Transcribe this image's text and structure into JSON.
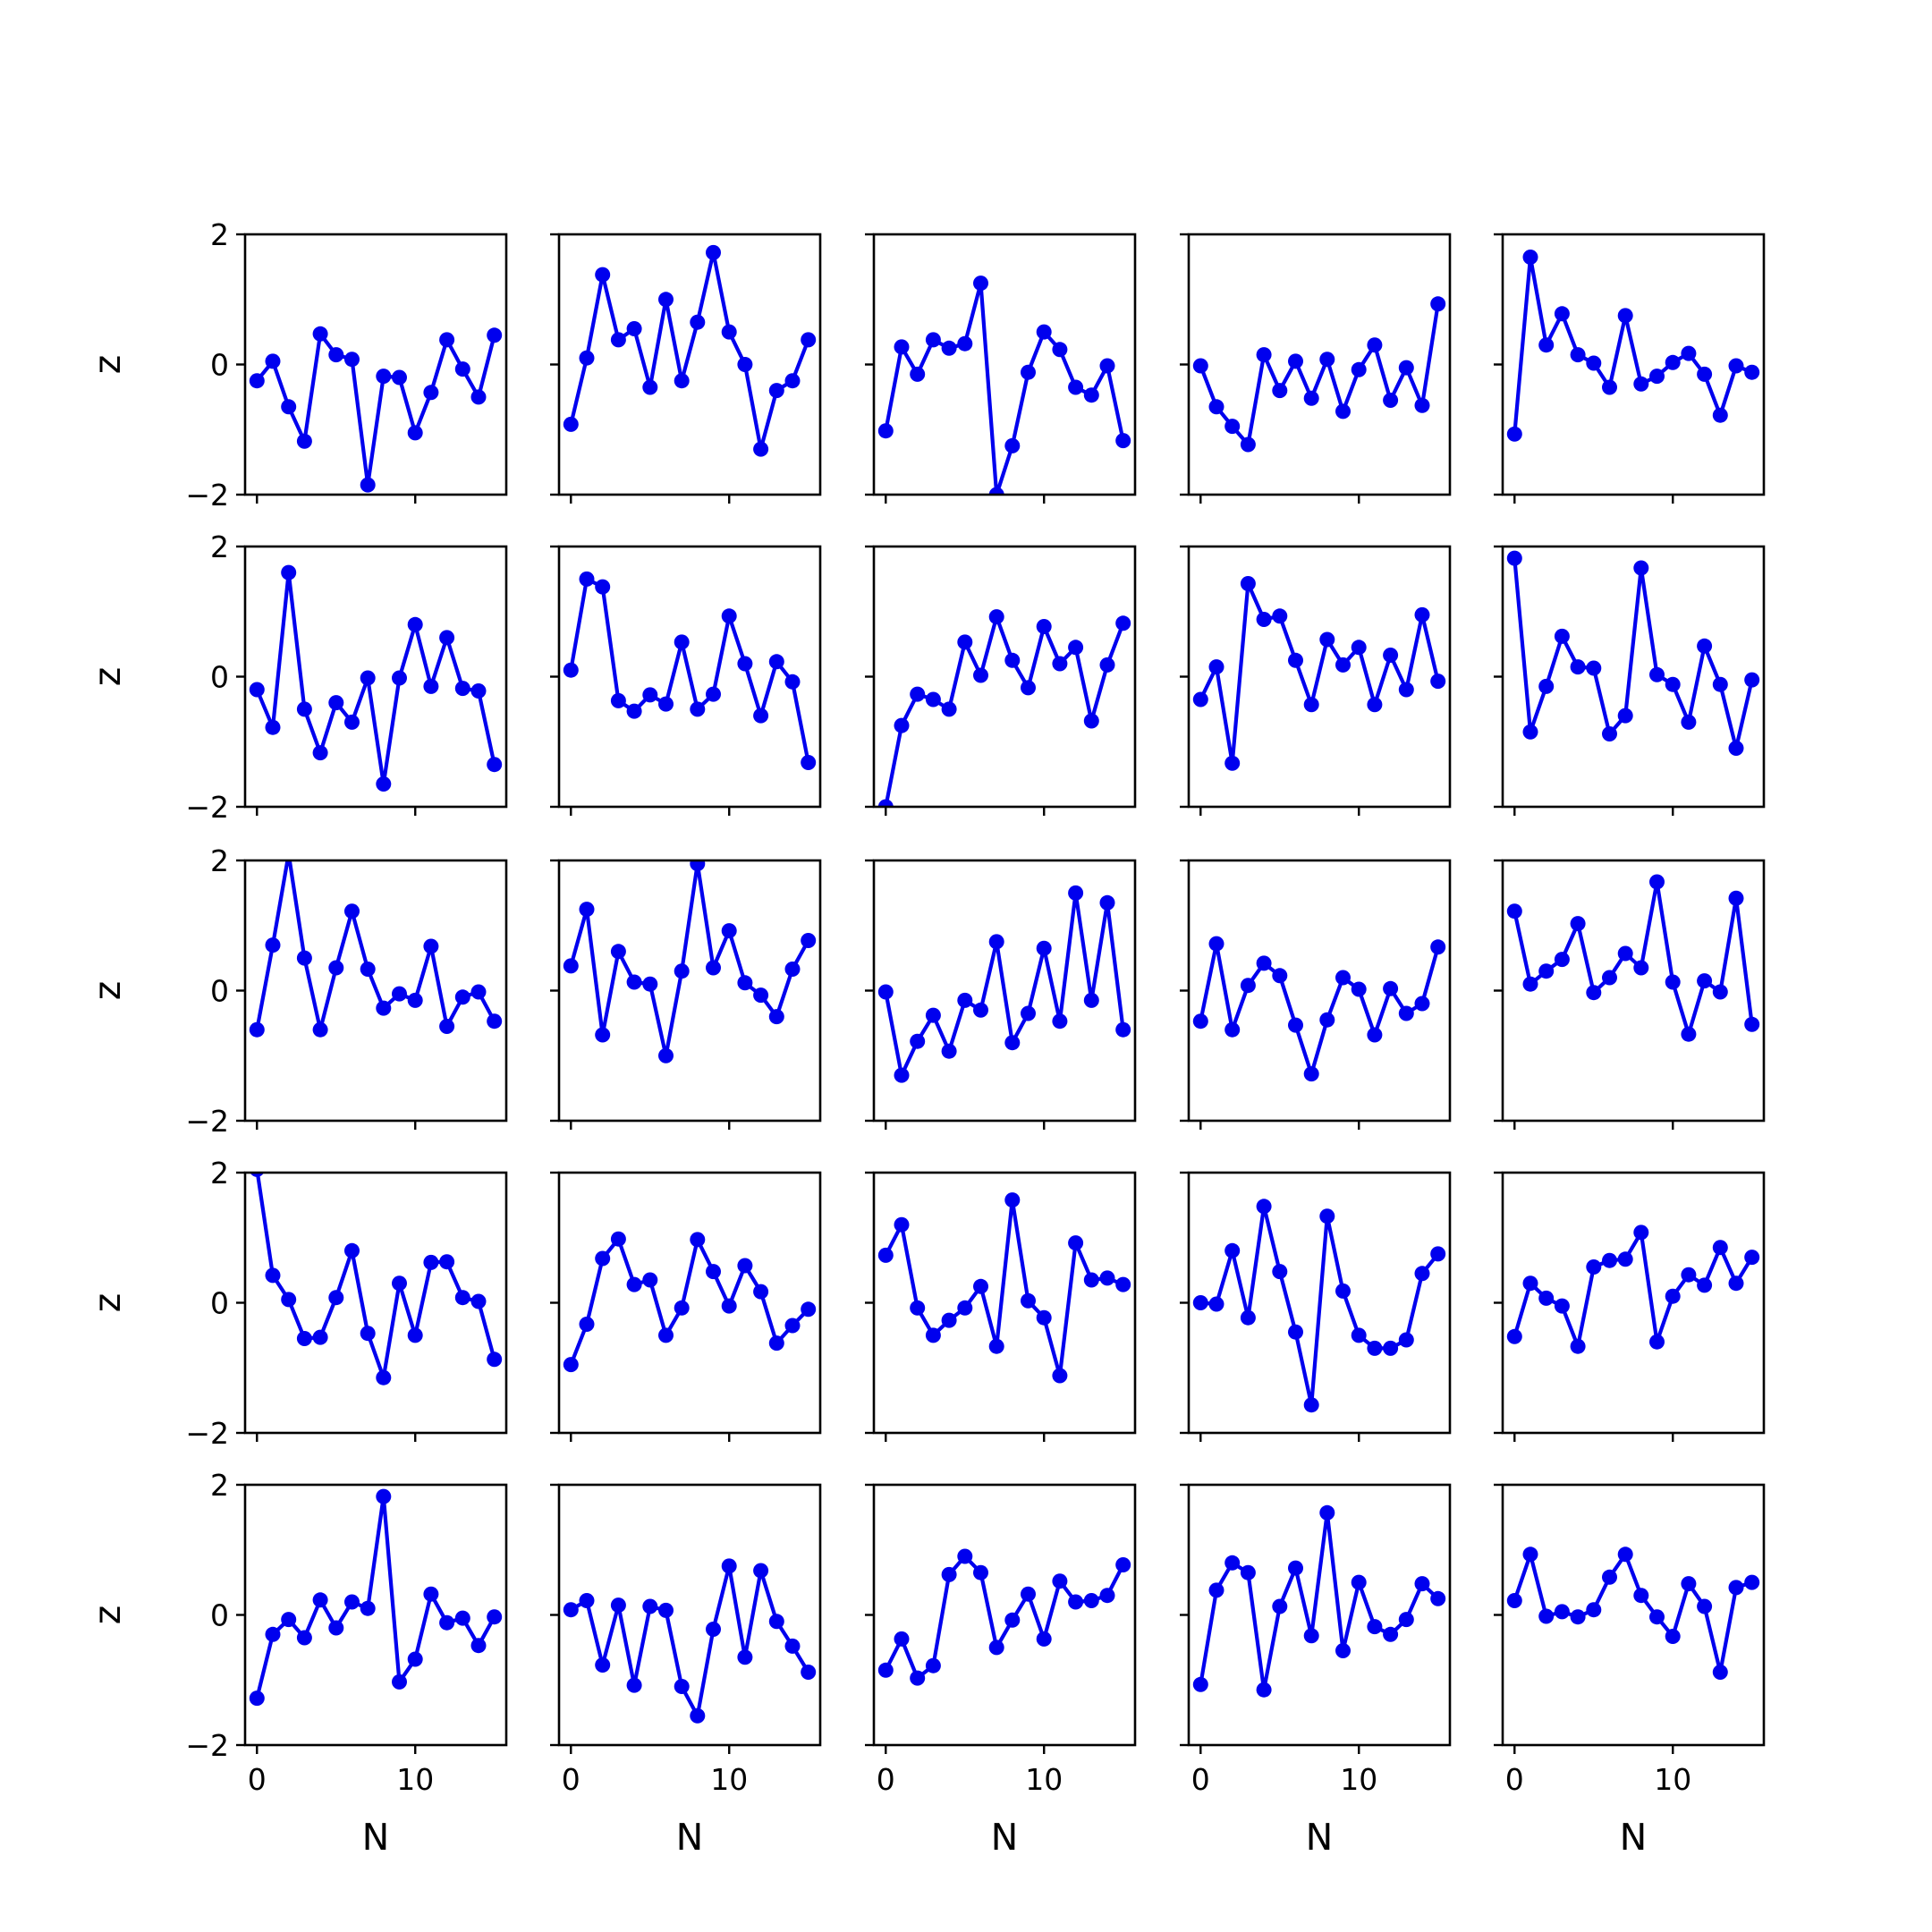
{
  "figure": {
    "rows": 5,
    "cols": 5,
    "line_color": "#0000ee",
    "marker_color": "#0000ee",
    "frame_color": "#000000",
    "background": "#ffffff"
  },
  "chart_data": [
    {
      "type": "line",
      "row": 0,
      "col": 0,
      "xlabel": "",
      "ylabel": "z",
      "xlim": [
        -0.75,
        15.75
      ],
      "ylim": [
        -2,
        2
      ],
      "xticks": [
        0,
        10
      ],
      "yticks": [
        -2,
        0,
        2
      ],
      "x": [
        0,
        1,
        2,
        3,
        4,
        5,
        6,
        7,
        8,
        9,
        10,
        11,
        12,
        13,
        14,
        15
      ],
      "y": [
        -0.25,
        0.05,
        -0.65,
        -1.18,
        0.47,
        0.15,
        0.08,
        -1.85,
        -0.18,
        -0.2,
        -1.05,
        -0.43,
        0.38,
        -0.07,
        -0.5,
        0.45
      ]
    },
    {
      "type": "line",
      "row": 0,
      "col": 1,
      "xlabel": "",
      "ylabel": "",
      "xlim": [
        -0.75,
        15.75
      ],
      "ylim": [
        -2,
        2
      ],
      "xticks": [
        0,
        10
      ],
      "yticks": [
        -2,
        0,
        2
      ],
      "x": [
        0,
        1,
        2,
        3,
        4,
        5,
        6,
        7,
        8,
        9,
        10,
        11,
        12,
        13,
        14,
        15
      ],
      "y": [
        -0.92,
        0.1,
        1.38,
        0.38,
        0.55,
        -0.35,
        1.0,
        -0.25,
        0.65,
        1.72,
        0.5,
        0.0,
        -1.3,
        -0.4,
        -0.25,
        0.38
      ]
    },
    {
      "type": "line",
      "row": 0,
      "col": 2,
      "xlabel": "",
      "ylabel": "",
      "xlim": [
        -0.75,
        15.75
      ],
      "ylim": [
        -2,
        2
      ],
      "xticks": [
        0,
        10
      ],
      "yticks": [
        -2,
        0,
        2
      ],
      "x": [
        0,
        1,
        2,
        3,
        4,
        5,
        6,
        7,
        8,
        9,
        10,
        11,
        12,
        13,
        14,
        15
      ],
      "y": [
        -1.02,
        0.27,
        -0.15,
        0.38,
        0.25,
        0.32,
        1.25,
        -2.0,
        -1.25,
        -0.12,
        0.5,
        0.23,
        -0.35,
        -0.47,
        -0.02,
        -1.17
      ]
    },
    {
      "type": "line",
      "row": 0,
      "col": 3,
      "xlabel": "",
      "ylabel": "",
      "xlim": [
        -0.75,
        15.75
      ],
      "ylim": [
        -2,
        2
      ],
      "xticks": [
        0,
        10
      ],
      "yticks": [
        -2,
        0,
        2
      ],
      "x": [
        0,
        1,
        2,
        3,
        4,
        5,
        6,
        7,
        8,
        9,
        10,
        11,
        12,
        13,
        14,
        15
      ],
      "y": [
        -0.02,
        -0.65,
        -0.95,
        -1.23,
        0.15,
        -0.4,
        0.05,
        -0.52,
        0.08,
        -0.72,
        -0.08,
        0.3,
        -0.55,
        -0.05,
        -0.63,
        0.93
      ]
    },
    {
      "type": "line",
      "row": 0,
      "col": 4,
      "xlabel": "",
      "ylabel": "",
      "xlim": [
        -0.75,
        15.75
      ],
      "ylim": [
        -2,
        2
      ],
      "xticks": [
        0,
        10
      ],
      "yticks": [
        -2,
        0,
        2
      ],
      "x": [
        0,
        1,
        2,
        3,
        4,
        5,
        6,
        7,
        8,
        9,
        10,
        11,
        12,
        13,
        14,
        15
      ],
      "y": [
        -1.07,
        1.65,
        0.3,
        0.78,
        0.15,
        0.02,
        -0.35,
        0.75,
        -0.3,
        -0.18,
        0.03,
        0.17,
        -0.15,
        -0.78,
        -0.02,
        -0.12
      ]
    },
    {
      "type": "line",
      "row": 1,
      "col": 0,
      "xlabel": "",
      "ylabel": "z",
      "xlim": [
        -0.75,
        15.75
      ],
      "ylim": [
        -2,
        2
      ],
      "xticks": [
        0,
        10
      ],
      "yticks": [
        -2,
        0,
        2
      ],
      "x": [
        0,
        1,
        2,
        3,
        4,
        5,
        6,
        7,
        8,
        9,
        10,
        11,
        12,
        13,
        14,
        15
      ],
      "y": [
        -0.2,
        -0.78,
        1.6,
        -0.5,
        -1.17,
        -0.4,
        -0.7,
        -0.02,
        -1.65,
        -0.02,
        0.8,
        -0.15,
        0.6,
        -0.18,
        -0.22,
        -1.35
      ]
    },
    {
      "type": "line",
      "row": 1,
      "col": 1,
      "xlabel": "",
      "ylabel": "",
      "xlim": [
        -0.75,
        15.75
      ],
      "ylim": [
        -2,
        2
      ],
      "xticks": [
        0,
        10
      ],
      "yticks": [
        -2,
        0,
        2
      ],
      "x": [
        0,
        1,
        2,
        3,
        4,
        5,
        6,
        7,
        8,
        9,
        10,
        11,
        12,
        13,
        14,
        15
      ],
      "y": [
        0.1,
        1.5,
        1.38,
        -0.37,
        -0.53,
        -0.28,
        -0.42,
        0.53,
        -0.5,
        -0.27,
        0.93,
        0.2,
        -0.6,
        0.23,
        -0.08,
        -1.32
      ]
    },
    {
      "type": "line",
      "row": 1,
      "col": 2,
      "xlabel": "",
      "ylabel": "",
      "xlim": [
        -0.75,
        15.75
      ],
      "ylim": [
        -2,
        2
      ],
      "xticks": [
        0,
        10
      ],
      "yticks": [
        -2,
        0,
        2
      ],
      "x": [
        0,
        1,
        2,
        3,
        4,
        5,
        6,
        7,
        8,
        9,
        10,
        11,
        12,
        13,
        14,
        15
      ],
      "y": [
        -2.0,
        -0.75,
        -0.27,
        -0.35,
        -0.5,
        0.53,
        0.02,
        0.92,
        0.25,
        -0.17,
        0.77,
        0.2,
        0.45,
        -0.68,
        0.18,
        0.82
      ]
    },
    {
      "type": "line",
      "row": 1,
      "col": 3,
      "xlabel": "",
      "ylabel": "",
      "xlim": [
        -0.75,
        15.75
      ],
      "ylim": [
        -2,
        2
      ],
      "xticks": [
        0,
        10
      ],
      "yticks": [
        -2,
        0,
        2
      ],
      "x": [
        0,
        1,
        2,
        3,
        4,
        5,
        6,
        7,
        8,
        9,
        10,
        11,
        12,
        13,
        14,
        15
      ],
      "y": [
        -0.35,
        0.15,
        -1.33,
        1.43,
        0.88,
        0.93,
        0.25,
        -0.43,
        0.57,
        0.18,
        0.45,
        -0.43,
        0.33,
        -0.2,
        0.95,
        -0.07
      ]
    },
    {
      "type": "line",
      "row": 1,
      "col": 4,
      "xlabel": "",
      "ylabel": "",
      "xlim": [
        -0.75,
        15.75
      ],
      "ylim": [
        -2,
        2
      ],
      "xticks": [
        0,
        10
      ],
      "yticks": [
        -2,
        0,
        2
      ],
      "x": [
        0,
        1,
        2,
        3,
        4,
        5,
        6,
        7,
        8,
        9,
        10,
        11,
        12,
        13,
        14,
        15
      ],
      "y": [
        1.82,
        -0.85,
        -0.15,
        0.62,
        0.15,
        0.13,
        -0.88,
        -0.6,
        1.67,
        0.03,
        -0.12,
        -0.7,
        0.47,
        -0.12,
        -1.1,
        -0.05
      ]
    },
    {
      "type": "line",
      "row": 2,
      "col": 0,
      "xlabel": "",
      "ylabel": "z",
      "xlim": [
        -0.75,
        15.75
      ],
      "ylim": [
        -2,
        2
      ],
      "xticks": [
        0,
        10
      ],
      "yticks": [
        -2,
        0,
        2
      ],
      "x": [
        0,
        1,
        2,
        3,
        4,
        5,
        6,
        7,
        8,
        9,
        10,
        11,
        12,
        13,
        14,
        15
      ],
      "y": [
        -0.6,
        0.7,
        2.1,
        0.5,
        -0.6,
        0.35,
        1.22,
        0.33,
        -0.27,
        -0.05,
        -0.15,
        0.68,
        -0.55,
        -0.1,
        -0.02,
        -0.47
      ]
    },
    {
      "type": "line",
      "row": 2,
      "col": 1,
      "xlabel": "",
      "ylabel": "",
      "xlim": [
        -0.75,
        15.75
      ],
      "ylim": [
        -2,
        2
      ],
      "xticks": [
        0,
        10
      ],
      "yticks": [
        -2,
        0,
        2
      ],
      "x": [
        0,
        1,
        2,
        3,
        4,
        5,
        6,
        7,
        8,
        9,
        10,
        11,
        12,
        13,
        14,
        15
      ],
      "y": [
        0.38,
        1.25,
        -0.68,
        0.6,
        0.13,
        0.1,
        -1.0,
        0.3,
        1.95,
        0.35,
        0.92,
        0.12,
        -0.07,
        -0.4,
        0.33,
        0.77
      ]
    },
    {
      "type": "line",
      "row": 2,
      "col": 2,
      "xlabel": "",
      "ylabel": "",
      "xlim": [
        -0.75,
        15.75
      ],
      "ylim": [
        -2,
        2
      ],
      "xticks": [
        0,
        10
      ],
      "yticks": [
        -2,
        0,
        2
      ],
      "x": [
        0,
        1,
        2,
        3,
        4,
        5,
        6,
        7,
        8,
        9,
        10,
        11,
        12,
        13,
        14,
        15
      ],
      "y": [
        -0.02,
        -1.3,
        -0.78,
        -0.38,
        -0.93,
        -0.15,
        -0.3,
        0.75,
        -0.8,
        -0.35,
        0.65,
        -0.47,
        1.5,
        -0.15,
        1.35,
        -0.6
      ]
    },
    {
      "type": "line",
      "row": 2,
      "col": 3,
      "xlabel": "",
      "ylabel": "",
      "xlim": [
        -0.75,
        15.75
      ],
      "ylim": [
        -2,
        2
      ],
      "xticks": [
        0,
        10
      ],
      "yticks": [
        -2,
        0,
        2
      ],
      "x": [
        0,
        1,
        2,
        3,
        4,
        5,
        6,
        7,
        8,
        9,
        10,
        11,
        12,
        13,
        14,
        15
      ],
      "y": [
        -0.47,
        0.72,
        -0.6,
        0.08,
        0.42,
        0.23,
        -0.53,
        -1.28,
        -0.45,
        0.2,
        0.02,
        -0.68,
        0.03,
        -0.35,
        -0.2,
        0.67
      ]
    },
    {
      "type": "line",
      "row": 2,
      "col": 4,
      "xlabel": "",
      "ylabel": "",
      "xlim": [
        -0.75,
        15.75
      ],
      "ylim": [
        -2,
        2
      ],
      "xticks": [
        0,
        10
      ],
      "yticks": [
        -2,
        0,
        2
      ],
      "x": [
        0,
        1,
        2,
        3,
        4,
        5,
        6,
        7,
        8,
        9,
        10,
        11,
        12,
        13,
        14,
        15
      ],
      "y": [
        1.22,
        0.1,
        0.3,
        0.48,
        1.03,
        -0.03,
        0.2,
        0.57,
        0.35,
        1.67,
        0.13,
        -0.67,
        0.15,
        -0.02,
        1.42,
        -0.52
      ]
    },
    {
      "type": "line",
      "row": 3,
      "col": 0,
      "xlabel": "",
      "ylabel": "z",
      "xlim": [
        -0.75,
        15.75
      ],
      "ylim": [
        -2,
        2
      ],
      "xticks": [
        0,
        10
      ],
      "yticks": [
        -2,
        0,
        2
      ],
      "x": [
        0,
        1,
        2,
        3,
        4,
        5,
        6,
        7,
        8,
        9,
        10,
        11,
        12,
        13,
        14,
        15
      ],
      "y": [
        2.05,
        0.42,
        0.05,
        -0.55,
        -0.53,
        0.08,
        0.8,
        -0.47,
        -1.15,
        0.3,
        -0.5,
        0.62,
        0.63,
        0.08,
        0.02,
        -0.87
      ]
    },
    {
      "type": "line",
      "row": 3,
      "col": 1,
      "xlabel": "",
      "ylabel": "",
      "xlim": [
        -0.75,
        15.75
      ],
      "ylim": [
        -2,
        2
      ],
      "xticks": [
        0,
        10
      ],
      "yticks": [
        -2,
        0,
        2
      ],
      "x": [
        0,
        1,
        2,
        3,
        4,
        5,
        6,
        7,
        8,
        9,
        10,
        11,
        12,
        13,
        14,
        15
      ],
      "y": [
        -0.95,
        -0.33,
        0.68,
        0.98,
        0.28,
        0.35,
        -0.5,
        -0.08,
        0.97,
        0.48,
        -0.05,
        0.57,
        0.17,
        -0.62,
        -0.35,
        -0.1
      ]
    },
    {
      "type": "line",
      "row": 3,
      "col": 2,
      "xlabel": "",
      "ylabel": "",
      "xlim": [
        -0.75,
        15.75
      ],
      "ylim": [
        -2,
        2
      ],
      "xticks": [
        0,
        10
      ],
      "yticks": [
        -2,
        0,
        2
      ],
      "x": [
        0,
        1,
        2,
        3,
        4,
        5,
        6,
        7,
        8,
        9,
        10,
        11,
        12,
        13,
        14,
        15
      ],
      "y": [
        0.73,
        1.2,
        -0.08,
        -0.5,
        -0.27,
        -0.08,
        0.25,
        -0.67,
        1.58,
        0.03,
        -0.23,
        -1.12,
        0.92,
        0.35,
        0.38,
        0.28
      ]
    },
    {
      "type": "line",
      "row": 3,
      "col": 3,
      "xlabel": "",
      "ylabel": "",
      "xlim": [
        -0.75,
        15.75
      ],
      "ylim": [
        -2,
        2
      ],
      "xticks": [
        0,
        10
      ],
      "yticks": [
        -2,
        0,
        2
      ],
      "x": [
        0,
        1,
        2,
        3,
        4,
        5,
        6,
        7,
        8,
        9,
        10,
        11,
        12,
        13,
        14,
        15
      ],
      "y": [
        0.0,
        -0.02,
        0.8,
        -0.23,
        1.48,
        0.48,
        -0.45,
        -1.57,
        1.33,
        0.18,
        -0.5,
        -0.7,
        -0.7,
        -0.57,
        0.45,
        0.75
      ]
    },
    {
      "type": "line",
      "row": 3,
      "col": 4,
      "xlabel": "",
      "ylabel": "",
      "xlim": [
        -0.75,
        15.75
      ],
      "ylim": [
        -2,
        2
      ],
      "xticks": [
        0,
        10
      ],
      "yticks": [
        -2,
        0,
        2
      ],
      "x": [
        0,
        1,
        2,
        3,
        4,
        5,
        6,
        7,
        8,
        9,
        10,
        11,
        12,
        13,
        14,
        15
      ],
      "y": [
        -0.52,
        0.3,
        0.07,
        -0.05,
        -0.67,
        0.55,
        0.65,
        0.67,
        1.08,
        -0.6,
        0.1,
        0.43,
        0.27,
        0.85,
        0.3,
        0.7
      ]
    },
    {
      "type": "line",
      "row": 4,
      "col": 0,
      "xlabel": "N",
      "ylabel": "z",
      "xlim": [
        -0.75,
        15.75
      ],
      "ylim": [
        -2,
        2
      ],
      "xticks": [
        0,
        10
      ],
      "yticks": [
        -2,
        0,
        2
      ],
      "x": [
        0,
        1,
        2,
        3,
        4,
        5,
        6,
        7,
        8,
        9,
        10,
        11,
        12,
        13,
        14,
        15
      ],
      "y": [
        -1.28,
        -0.3,
        -0.07,
        -0.35,
        0.23,
        -0.2,
        0.2,
        0.1,
        1.82,
        -1.03,
        -0.68,
        0.32,
        -0.12,
        -0.05,
        -0.47,
        -0.03
      ]
    },
    {
      "type": "line",
      "row": 4,
      "col": 1,
      "xlabel": "N",
      "ylabel": "",
      "xlim": [
        -0.75,
        15.75
      ],
      "ylim": [
        -2,
        2
      ],
      "xticks": [
        0,
        10
      ],
      "yticks": [
        -2,
        0,
        2
      ],
      "x": [
        0,
        1,
        2,
        3,
        4,
        5,
        6,
        7,
        8,
        9,
        10,
        11,
        12,
        13,
        14,
        15
      ],
      "y": [
        0.08,
        0.22,
        -0.77,
        0.15,
        -1.08,
        0.13,
        0.07,
        -1.1,
        -1.55,
        -0.22,
        0.75,
        -0.65,
        0.68,
        -0.1,
        -0.48,
        -0.88
      ]
    },
    {
      "type": "line",
      "row": 4,
      "col": 2,
      "xlabel": "N",
      "ylabel": "",
      "xlim": [
        -0.75,
        15.75
      ],
      "ylim": [
        -2,
        2
      ],
      "xticks": [
        0,
        10
      ],
      "yticks": [
        -2,
        0,
        2
      ],
      "x": [
        0,
        1,
        2,
        3,
        4,
        5,
        6,
        7,
        8,
        9,
        10,
        11,
        12,
        13,
        14,
        15
      ],
      "y": [
        -0.85,
        -0.37,
        -0.97,
        -0.78,
        0.62,
        0.9,
        0.65,
        -0.5,
        -0.08,
        0.32,
        -0.37,
        0.52,
        0.2,
        0.22,
        0.3,
        0.77
      ]
    },
    {
      "type": "line",
      "row": 4,
      "col": 3,
      "xlabel": "N",
      "ylabel": "",
      "xlim": [
        -0.75,
        15.75
      ],
      "ylim": [
        -2,
        2
      ],
      "xticks": [
        0,
        10
      ],
      "yticks": [
        -2,
        0,
        2
      ],
      "x": [
        0,
        1,
        2,
        3,
        4,
        5,
        6,
        7,
        8,
        9,
        10,
        11,
        12,
        13,
        14,
        15
      ],
      "y": [
        -1.07,
        0.38,
        0.8,
        0.65,
        -1.15,
        0.13,
        0.72,
        -0.32,
        1.57,
        -0.55,
        0.5,
        -0.18,
        -0.3,
        -0.07,
        0.48,
        0.25
      ]
    },
    {
      "type": "line",
      "row": 4,
      "col": 4,
      "xlabel": "N",
      "ylabel": "",
      "xlim": [
        -0.75,
        15.75
      ],
      "ylim": [
        -2,
        2
      ],
      "xticks": [
        0,
        10
      ],
      "yticks": [
        -2,
        0,
        2
      ],
      "x": [
        0,
        1,
        2,
        3,
        4,
        5,
        6,
        7,
        8,
        9,
        10,
        11,
        12,
        13,
        14,
        15
      ],
      "y": [
        0.22,
        0.93,
        -0.02,
        0.05,
        -0.03,
        0.08,
        0.58,
        0.93,
        0.3,
        -0.03,
        -0.33,
        0.48,
        0.13,
        -0.88,
        0.42,
        0.5
      ]
    }
  ]
}
